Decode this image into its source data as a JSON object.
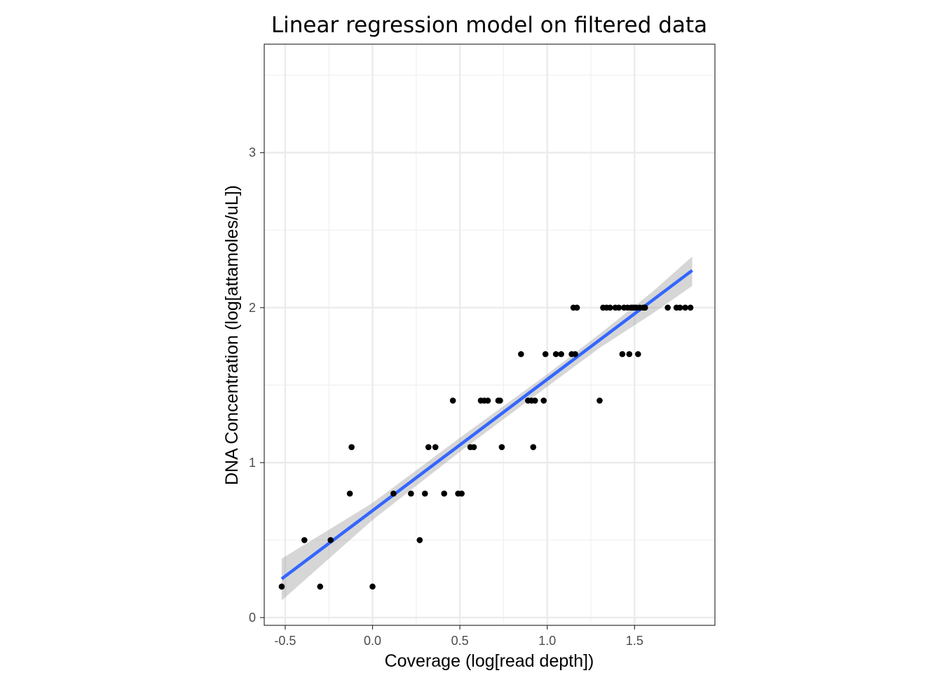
{
  "chart_data": {
    "type": "scatter",
    "title": "Linear regression model on filtered data",
    "xlabel": "Coverage (log[read depth])",
    "ylabel": "DNA Concentration (log[attamoles/uL])",
    "xlim": [
      -0.62,
      1.96
    ],
    "ylim": [
      -0.05,
      3.7
    ],
    "xticks": [
      -0.5,
      0.0,
      0.5,
      1.0,
      1.5
    ],
    "xtick_labels": [
      "-0.5",
      "0.0",
      "0.5",
      "1.0",
      "1.5"
    ],
    "yticks": [
      0,
      1,
      2,
      3
    ],
    "ytick_labels": [
      "0",
      "1",
      "2",
      "3"
    ],
    "grid": true,
    "theme": "bw",
    "point_color": "#000000",
    "line_color": "#3366FF",
    "band_color": "#999999",
    "series": [
      {
        "points": [
          [
            -0.52,
            0.2
          ],
          [
            -0.39,
            0.5
          ],
          [
            -0.3,
            0.2
          ],
          [
            -0.24,
            0.5
          ],
          [
            -0.13,
            0.8
          ],
          [
            -0.12,
            1.1
          ],
          [
            0.0,
            0.2
          ],
          [
            0.12,
            0.8
          ],
          [
            0.22,
            0.8
          ],
          [
            0.27,
            0.5
          ],
          [
            0.3,
            0.8
          ],
          [
            0.32,
            1.1
          ],
          [
            0.36,
            1.1
          ],
          [
            0.41,
            0.8
          ],
          [
            0.46,
            1.4
          ],
          [
            0.49,
            0.8
          ],
          [
            0.51,
            0.8
          ],
          [
            0.56,
            1.1
          ],
          [
            0.58,
            1.1
          ],
          [
            0.62,
            1.4
          ],
          [
            0.64,
            1.4
          ],
          [
            0.66,
            1.4
          ],
          [
            0.72,
            1.4
          ],
          [
            0.73,
            1.4
          ],
          [
            0.74,
            1.1
          ],
          [
            0.85,
            1.7
          ],
          [
            0.89,
            1.4
          ],
          [
            0.91,
            1.4
          ],
          [
            0.92,
            1.1
          ],
          [
            0.93,
            1.4
          ],
          [
            0.98,
            1.4
          ],
          [
            0.99,
            1.7
          ],
          [
            1.05,
            1.7
          ],
          [
            1.08,
            1.7
          ],
          [
            1.14,
            1.7
          ],
          [
            1.15,
            2.0
          ],
          [
            1.16,
            1.7
          ],
          [
            1.17,
            2.0
          ],
          [
            1.3,
            1.4
          ],
          [
            1.32,
            2.0
          ],
          [
            1.34,
            2.0
          ],
          [
            1.36,
            2.0
          ],
          [
            1.39,
            2.0
          ],
          [
            1.41,
            2.0
          ],
          [
            1.43,
            1.7
          ],
          [
            1.44,
            2.0
          ],
          [
            1.46,
            2.0
          ],
          [
            1.47,
            1.7
          ],
          [
            1.48,
            2.0
          ],
          [
            1.49,
            2.0
          ],
          [
            1.5,
            2.0
          ],
          [
            1.51,
            2.0
          ],
          [
            1.52,
            1.7
          ],
          [
            1.53,
            2.0
          ],
          [
            1.55,
            2.0
          ],
          [
            1.56,
            2.0
          ],
          [
            1.69,
            2.0
          ],
          [
            1.74,
            2.0
          ],
          [
            1.76,
            2.0
          ],
          [
            1.79,
            2.0
          ],
          [
            1.82,
            2.0
          ]
        ]
      }
    ],
    "fit_line": {
      "x": [
        -0.52,
        1.83
      ],
      "y": [
        0.25,
        2.24
      ]
    },
    "confidence_band": {
      "x": [
        -0.52,
        0.0,
        0.5,
        1.0,
        1.3,
        1.6,
        1.83
      ],
      "lower": [
        0.11,
        0.63,
        1.07,
        1.49,
        1.74,
        1.96,
        2.14
      ],
      "upper": [
        0.38,
        0.74,
        1.16,
        1.57,
        1.83,
        2.1,
        2.33
      ]
    }
  }
}
